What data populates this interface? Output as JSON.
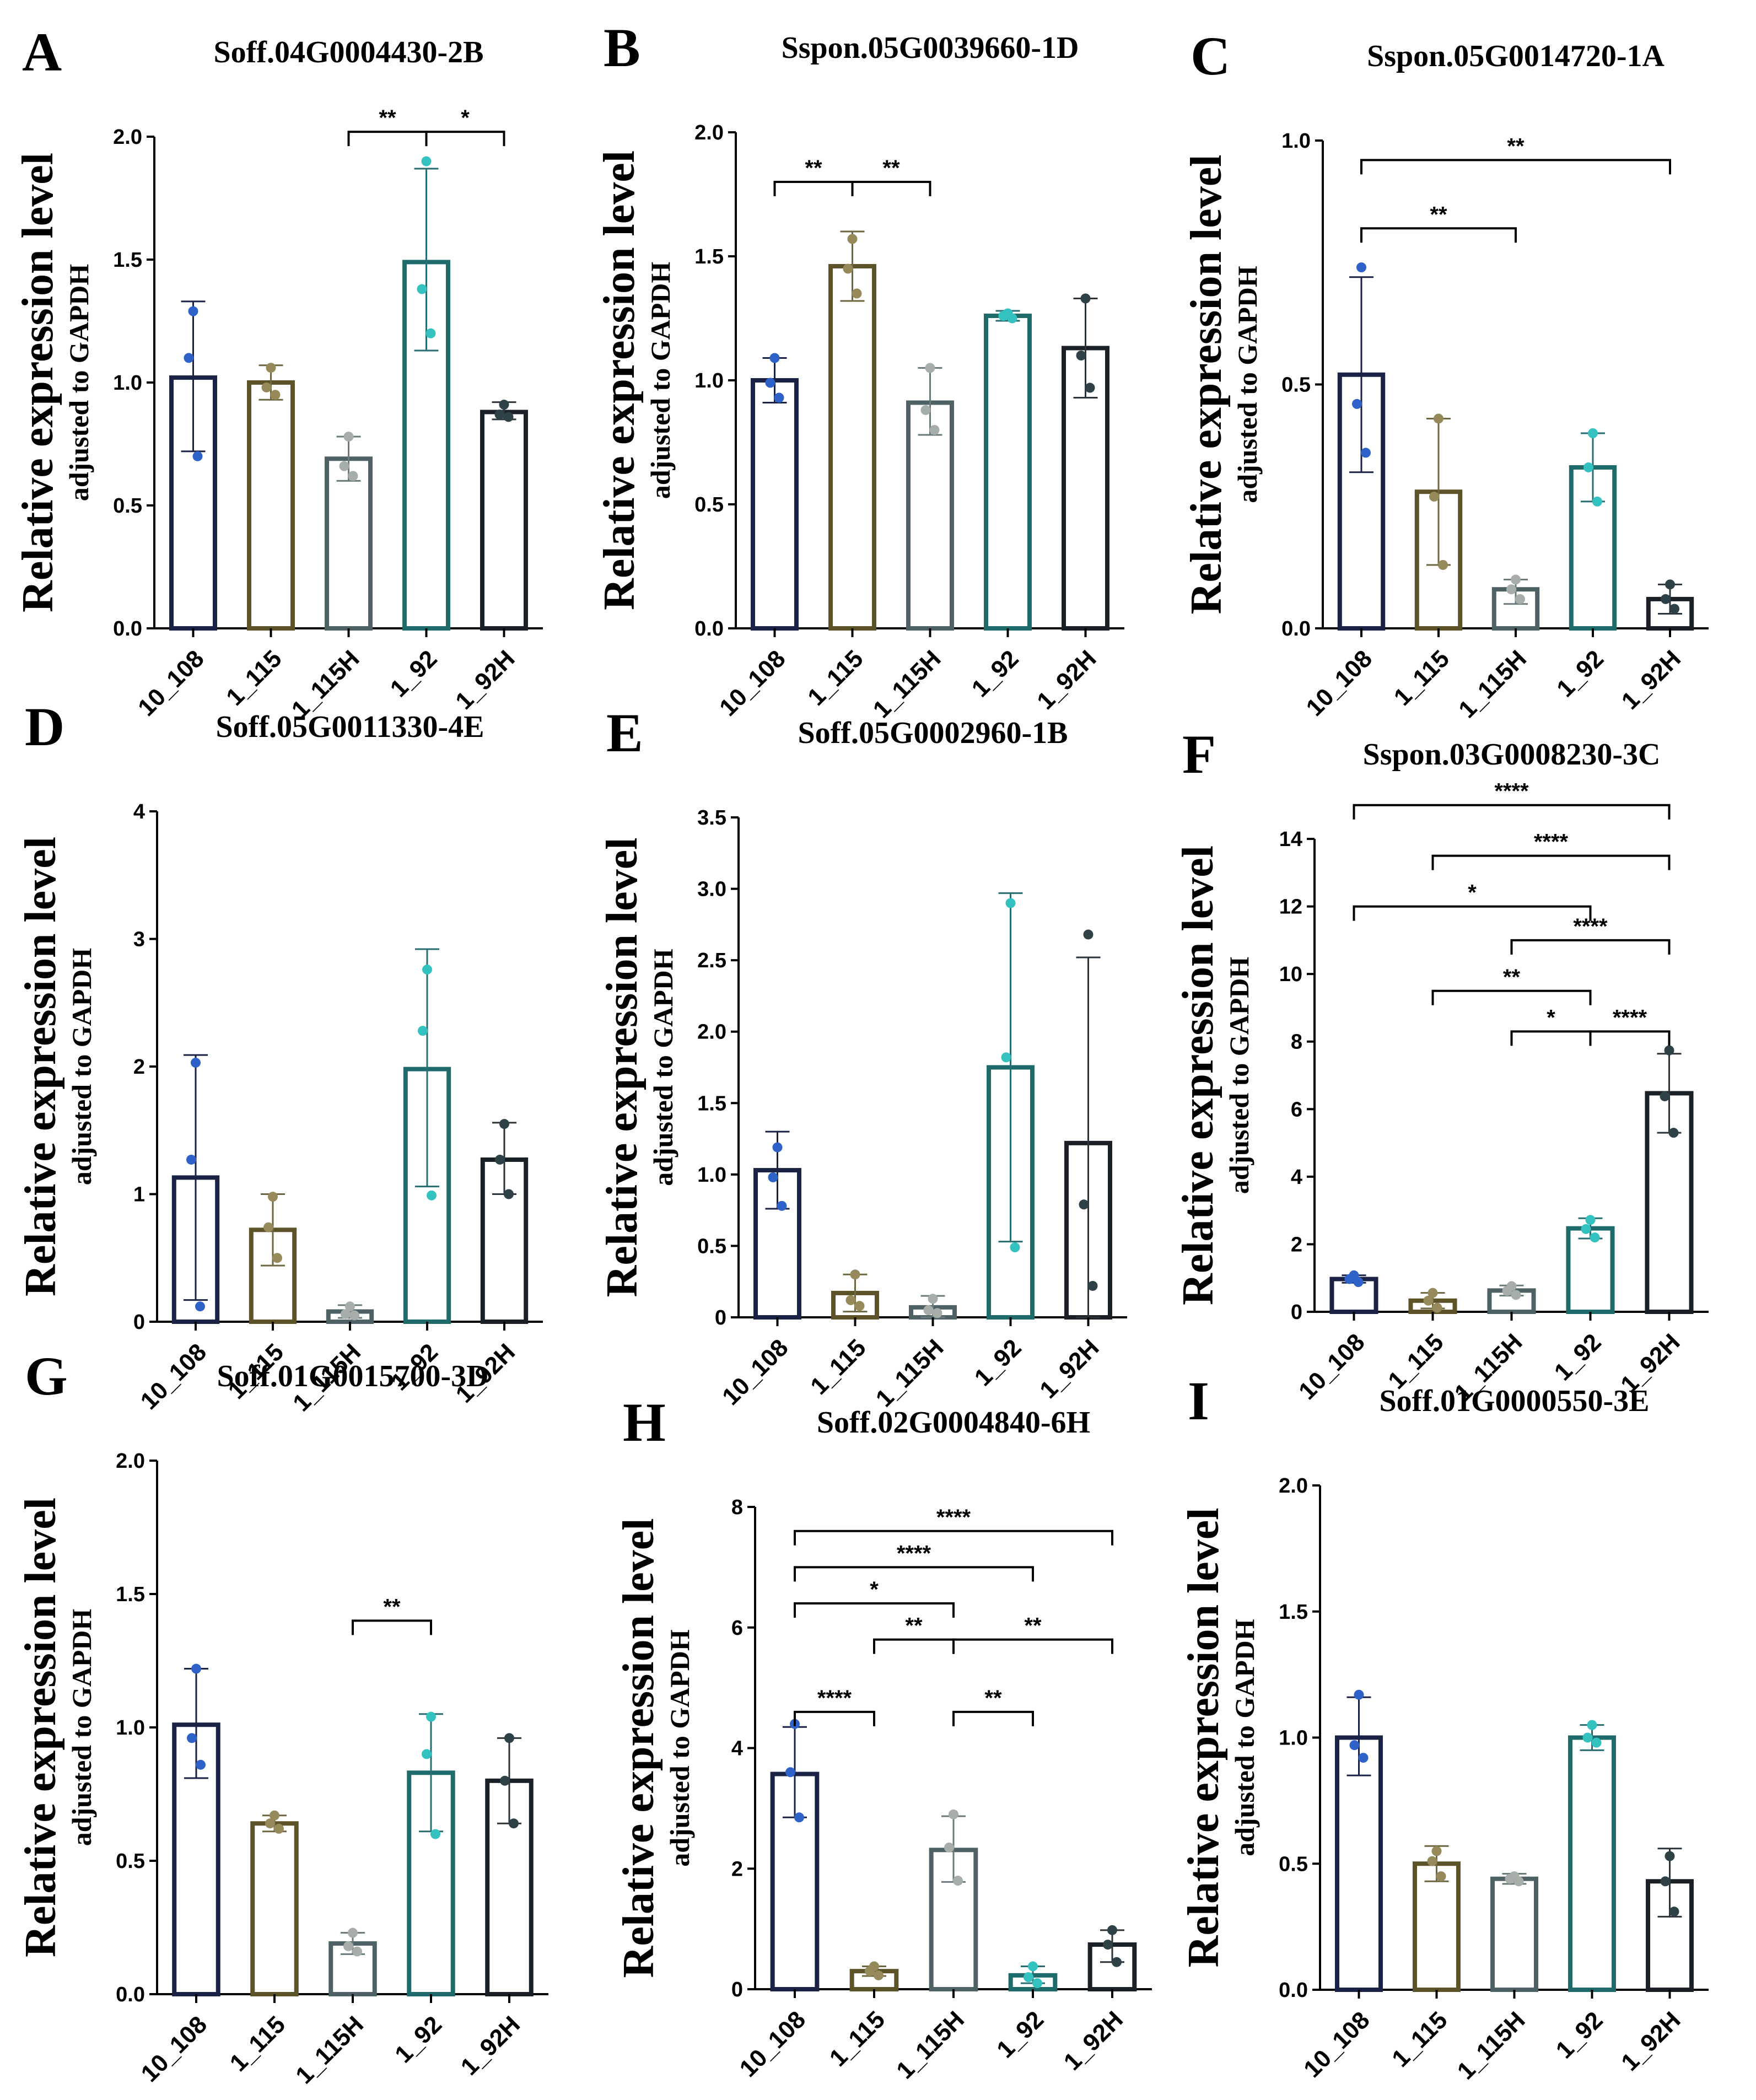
{
  "chart_data": [
    {
      "panel": "A",
      "type": "bar",
      "title": "Soff.04G0004430-2B",
      "ylabel": "Relative expression level",
      "ylabel2": "adjusted to GAPDH",
      "categories": [
        "10_108",
        "1_115",
        "1_115H",
        "1_92",
        "1_92H"
      ],
      "values": [
        1.02,
        1.0,
        0.69,
        1.49,
        0.88
      ],
      "error": [
        [
          0.72,
          1.33
        ],
        [
          0.93,
          1.07
        ],
        [
          0.6,
          0.78
        ],
        [
          1.13,
          1.87
        ],
        [
          0.85,
          0.92
        ]
      ],
      "points": [
        [
          1.29,
          1.1,
          0.7
        ],
        [
          1.06,
          0.98,
          0.95
        ],
        [
          0.78,
          0.66,
          0.62
        ],
        [
          1.9,
          1.38,
          1.2
        ],
        [
          0.91,
          0.87,
          0.86
        ]
      ],
      "ylim": [
        0,
        2.0
      ],
      "yticks": [
        "0.0",
        "0.5",
        "1.0",
        "1.5",
        "2.0"
      ],
      "sig": [
        {
          "from": 2,
          "to": 3,
          "label": "**",
          "y": 2.02
        },
        {
          "from": 3,
          "to": 4,
          "label": "*",
          "y": 2.02
        }
      ]
    },
    {
      "panel": "B",
      "type": "bar",
      "title": "Sspon.05G0039660-1D",
      "ylabel": "Relative expression level",
      "ylabel2": "adjusted to GAPDH",
      "categories": [
        "10_108",
        "1_115",
        "1_115H",
        "1_92",
        "1_92H"
      ],
      "values": [
        1.0,
        1.46,
        0.91,
        1.26,
        1.13
      ],
      "error": [
        [
          0.91,
          1.09
        ],
        [
          1.32,
          1.6
        ],
        [
          0.78,
          1.05
        ],
        [
          1.24,
          1.28
        ],
        [
          0.93,
          1.33
        ]
      ],
      "points": [
        [
          1.09,
          0.99,
          0.93
        ],
        [
          1.57,
          1.45,
          1.35
        ],
        [
          1.05,
          0.88,
          0.8
        ],
        [
          1.27,
          1.26,
          1.25
        ],
        [
          1.33,
          1.1,
          0.97
        ]
      ],
      "ylim": [
        0,
        2.0
      ],
      "yticks": [
        "0.0",
        "0.5",
        "1.0",
        "1.5",
        "2.0"
      ],
      "sig": [
        {
          "from": 0,
          "to": 1,
          "label": "**",
          "y": 1.8
        },
        {
          "from": 1,
          "to": 2,
          "label": "**",
          "y": 1.8
        }
      ]
    },
    {
      "panel": "C",
      "type": "bar",
      "title": "Sspon.05G0014720-1A",
      "ylabel": "Relative expression level",
      "ylabel2": "adjusted to GAPDH",
      "categories": [
        "10_108",
        "1_115",
        "1_115H",
        "1_92",
        "1_92H"
      ],
      "values": [
        0.52,
        0.28,
        0.08,
        0.33,
        0.06
      ],
      "error": [
        [
          0.32,
          0.72
        ],
        [
          0.13,
          0.43
        ],
        [
          0.05,
          0.1
        ],
        [
          0.26,
          0.4
        ],
        [
          0.03,
          0.09
        ]
      ],
      "points": [
        [
          0.74,
          0.46,
          0.36
        ],
        [
          0.43,
          0.27,
          0.13
        ],
        [
          0.1,
          0.08,
          0.06
        ],
        [
          0.4,
          0.33,
          0.26
        ],
        [
          0.09,
          0.06,
          0.04
        ]
      ],
      "ylim": [
        0,
        1.0
      ],
      "yticks": [
        "0.0",
        "0.5",
        "1.0"
      ],
      "sig": [
        {
          "from": 0,
          "to": 2,
          "label": "**",
          "y": 0.82
        },
        {
          "from": 0,
          "to": 4,
          "label": "**",
          "y": 0.96
        }
      ]
    },
    {
      "panel": "D",
      "type": "bar",
      "title": "Soff.05G0011330-4E",
      "ylabel": "Relative expression level",
      "ylabel2": "adjusted to GAPDH",
      "categories": [
        "10_108",
        "1_115",
        "1_115H",
        "1_92",
        "1_92H"
      ],
      "values": [
        1.13,
        0.72,
        0.08,
        1.98,
        1.27
      ],
      "error": [
        [
          0.17,
          2.09
        ],
        [
          0.44,
          1.0
        ],
        [
          0.03,
          0.13
        ],
        [
          1.06,
          2.92
        ],
        [
          1.0,
          1.56
        ]
      ],
      "points": [
        [
          2.03,
          1.27,
          0.12
        ],
        [
          0.98,
          0.74,
          0.5
        ],
        [
          0.12,
          0.06,
          0.05
        ],
        [
          2.76,
          2.28,
          0.99
        ],
        [
          1.55,
          1.27,
          1.0
        ]
      ],
      "ylim": [
        0,
        4
      ],
      "yticks": [
        "0",
        "1",
        "2",
        "3",
        "4"
      ],
      "sig": []
    },
    {
      "panel": "E",
      "type": "bar",
      "title": "Soff.05G0002960-1B",
      "ylabel": "Relative expression level",
      "ylabel2": "adjusted to GAPDH",
      "categories": [
        "10_108",
        "1_115",
        "1_115H",
        "1_92",
        "1_92H"
      ],
      "values": [
        1.03,
        0.17,
        0.07,
        1.75,
        1.22
      ],
      "error": [
        [
          0.76,
          1.3
        ],
        [
          0.04,
          0.3
        ],
        [
          0.0,
          0.15
        ],
        [
          0.53,
          2.97
        ],
        [
          0.0,
          2.52
        ]
      ],
      "points": [
        [
          1.19,
          0.98,
          0.78
        ],
        [
          0.3,
          0.12,
          0.08
        ],
        [
          0.13,
          0.05,
          0.03
        ],
        [
          2.9,
          1.82,
          0.49
        ],
        [
          2.68,
          0.79,
          0.22
        ]
      ],
      "ylim": [
        0,
        3.5
      ],
      "yticks": [
        "0",
        "0.5",
        "1.0",
        "1.5",
        "2.0",
        "2.5",
        "3.0",
        "3.5"
      ],
      "sig": []
    },
    {
      "panel": "F",
      "type": "bar",
      "title": "Sspon.03G0008230-3C",
      "ylabel": "Relative expression level",
      "ylabel2": "adjusted to GAPDH",
      "categories": [
        "10_108",
        "1_115",
        "1_115H",
        "1_92",
        "1_92H"
      ],
      "values": [
        0.97,
        0.33,
        0.63,
        2.47,
        6.47
      ],
      "error": [
        [
          0.86,
          1.08
        ],
        [
          0.1,
          0.56
        ],
        [
          0.48,
          0.78
        ],
        [
          2.17,
          2.77
        ],
        [
          5.3,
          7.64
        ]
      ],
      "points": [
        [
          1.08,
          0.97,
          0.88
        ],
        [
          0.56,
          0.33,
          0.12
        ],
        [
          0.76,
          0.62,
          0.5
        ],
        [
          2.72,
          2.45,
          2.2
        ],
        [
          7.74,
          6.38,
          5.3
        ]
      ],
      "ylim": [
        0,
        14
      ],
      "yticks": [
        "0",
        "2",
        "4",
        "6",
        "8",
        "10",
        "12",
        "14"
      ],
      "sig": [
        {
          "from": 0,
          "to": 4,
          "label": "****",
          "y": 15.0
        },
        {
          "from": 1,
          "to": 4,
          "label": "****",
          "y": 13.5
        },
        {
          "from": 0,
          "to": 3,
          "label": "*",
          "y": 12.0
        },
        {
          "from": 2,
          "to": 4,
          "label": "****",
          "y": 11.0
        },
        {
          "from": 1,
          "to": 3,
          "label": "**",
          "y": 9.5
        },
        {
          "from": 2,
          "to": 3,
          "label": "*",
          "y": 8.3
        },
        {
          "from": 3,
          "to": 4,
          "label": "****",
          "y": 8.3
        }
      ]
    },
    {
      "panel": "G",
      "type": "bar",
      "title": "Soff.01G0015700-3D",
      "ylabel": "Relative expression level",
      "ylabel2": "adjusted to GAPDH",
      "categories": [
        "10_108",
        "1_115",
        "1_115H",
        "1_92",
        "1_92H"
      ],
      "values": [
        1.01,
        0.64,
        0.19,
        0.83,
        0.8
      ],
      "error": [
        [
          0.81,
          1.22
        ],
        [
          0.61,
          0.67
        ],
        [
          0.15,
          0.23
        ],
        [
          0.61,
          1.05
        ],
        [
          0.64,
          0.96
        ]
      ],
      "points": [
        [
          1.22,
          0.96,
          0.86
        ],
        [
          0.67,
          0.64,
          0.62
        ],
        [
          0.23,
          0.18,
          0.16
        ],
        [
          1.04,
          0.9,
          0.6
        ],
        [
          0.96,
          0.8,
          0.64
        ]
      ],
      "ylim": [
        0,
        2.0
      ],
      "yticks": [
        "0.0",
        "0.5",
        "1.0",
        "1.5",
        "2.0"
      ],
      "sig": [
        {
          "from": 2,
          "to": 3,
          "label": "**",
          "y": 1.4
        }
      ]
    },
    {
      "panel": "H",
      "type": "bar",
      "title": "Soff.02G0004840-6H",
      "ylabel": "Relative expression level",
      "ylabel2": "adjusted to GAPDH",
      "categories": [
        "10_108",
        "1_115",
        "1_115H",
        "1_92",
        "1_92H"
      ],
      "values": [
        3.57,
        0.3,
        2.31,
        0.23,
        0.74
      ],
      "error": [
        [
          2.85,
          4.35
        ],
        [
          0.22,
          0.38
        ],
        [
          1.78,
          2.87
        ],
        [
          0.1,
          0.38
        ],
        [
          0.45,
          0.98
        ]
      ],
      "points": [
        [
          4.4,
          3.6,
          2.85
        ],
        [
          0.38,
          0.3,
          0.23
        ],
        [
          2.9,
          2.35,
          1.8
        ],
        [
          0.38,
          0.2,
          0.1
        ],
        [
          0.98,
          0.74,
          0.45
        ]
      ],
      "ylim": [
        0,
        8
      ],
      "yticks": [
        "0",
        "2",
        "4",
        "6",
        "8"
      ],
      "sig": [
        {
          "from": 0,
          "to": 4,
          "label": "****",
          "y": 7.6
        },
        {
          "from": 0,
          "to": 3,
          "label": "****",
          "y": 7.0
        },
        {
          "from": 0,
          "to": 2,
          "label": "*",
          "y": 6.4
        },
        {
          "from": 1,
          "to": 2,
          "label": "**",
          "y": 5.8
        },
        {
          "from": 2,
          "to": 4,
          "label": "**",
          "y": 5.8
        },
        {
          "from": 0,
          "to": 1,
          "label": "****",
          "y": 4.6
        },
        {
          "from": 2,
          "to": 3,
          "label": "**",
          "y": 4.6
        }
      ]
    },
    {
      "panel": "I",
      "type": "bar",
      "title": "Soff.01G0000550-3E",
      "ylabel": "Relative expression level",
      "ylabel2": "adjusted to GAPDH",
      "categories": [
        "10_108",
        "1_115",
        "1_115H",
        "1_92",
        "1_92H"
      ],
      "values": [
        1.0,
        0.5,
        0.44,
        1.0,
        0.43
      ],
      "error": [
        [
          0.85,
          1.16
        ],
        [
          0.43,
          0.57
        ],
        [
          0.42,
          0.46
        ],
        [
          0.95,
          1.05
        ],
        [
          0.29,
          0.56
        ]
      ],
      "points": [
        [
          1.17,
          0.97,
          0.92
        ],
        [
          0.55,
          0.51,
          0.45
        ],
        [
          0.45,
          0.44,
          0.43
        ],
        [
          1.05,
          1.0,
          0.98
        ],
        [
          0.53,
          0.43,
          0.31
        ]
      ],
      "ylim": [
        0,
        2.0
      ],
      "yticks": [
        "0.0",
        "0.5",
        "1.0",
        "1.5",
        "2.0"
      ],
      "sig": []
    }
  ],
  "colors": {
    "bars": [
      "#1a2246",
      "#5c5428",
      "#4e6266",
      "#1f6b6c",
      "#1b1f26"
    ],
    "points": [
      "#2f62c9",
      "#968a5a",
      "#a7aeaa",
      "#33c2c0",
      "#2d4147"
    ],
    "errors": [
      "#1a2246",
      "#6e6640",
      "#6a7a7c",
      "#286e70",
      "#2b3238"
    ],
    "sig": "#000000"
  }
}
